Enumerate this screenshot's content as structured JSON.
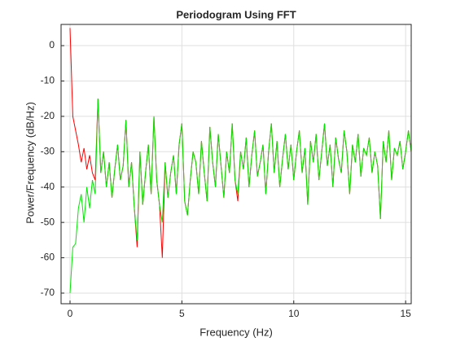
{
  "chart_data": {
    "type": "line",
    "title": "Periodogram Using FFT",
    "xlabel": "Frequency (Hz)",
    "ylabel": "Power/Frequency (dB/Hz)",
    "x": [
      0,
      0.125,
      0.25,
      0.375,
      0.5,
      0.625,
      0.75,
      0.875,
      1,
      1.125,
      1.25,
      1.375,
      1.5,
      1.625,
      1.75,
      1.875,
      2,
      2.125,
      2.25,
      2.375,
      2.5,
      2.625,
      2.75,
      2.875,
      3,
      3.125,
      3.25,
      3.375,
      3.5,
      3.625,
      3.75,
      3.875,
      4,
      4.125,
      4.25,
      4.375,
      4.5,
      4.625,
      4.75,
      4.875,
      5,
      5.125,
      5.25,
      5.375,
      5.5,
      5.625,
      5.75,
      5.875,
      6,
      6.125,
      6.25,
      6.375,
      6.5,
      6.625,
      6.75,
      6.875,
      7,
      7.125,
      7.25,
      7.375,
      7.5,
      7.625,
      7.75,
      7.875,
      8,
      8.125,
      8.25,
      8.375,
      8.5,
      8.625,
      8.75,
      8.875,
      9,
      9.125,
      9.25,
      9.375,
      9.5,
      9.625,
      9.75,
      9.875,
      10,
      10.125,
      10.25,
      10.375,
      10.5,
      10.625,
      10.75,
      10.875,
      11,
      11.125,
      11.25,
      11.375,
      11.5,
      11.625,
      11.75,
      11.875,
      12,
      12.125,
      12.25,
      12.375,
      12.5,
      12.625,
      12.75,
      12.875,
      13,
      13.125,
      13.25,
      13.375,
      13.5,
      13.625,
      13.75,
      13.875,
      14,
      14.125,
      14.25,
      14.375,
      14.5,
      14.625,
      14.75,
      14.875,
      15,
      15.125,
      15.25
    ],
    "series": [
      {
        "color": "#ff0000",
        "values": [
          5,
          -20,
          -24,
          -28,
          -33,
          -29,
          -35,
          -31,
          -36,
          -38,
          -15,
          -36,
          -30,
          -40,
          -33,
          -43,
          -35,
          -28,
          -38,
          -34,
          -21,
          -40,
          -33,
          -46,
          -57,
          -30,
          -45,
          -36,
          -28,
          -42,
          -20,
          -38,
          -45,
          -60,
          -33,
          -43,
          -36,
          -31,
          -42,
          -28,
          -22,
          -44,
          -48,
          -38,
          -30,
          -33,
          -42,
          -27,
          -36,
          -44,
          -23,
          -33,
          -40,
          -25,
          -34,
          -43,
          -30,
          -36,
          -22,
          -38,
          -44,
          -30,
          -35,
          -26,
          -40,
          -31,
          -24,
          -37,
          -33,
          -28,
          -42,
          -30,
          -22,
          -36,
          -27,
          -40,
          -32,
          -25,
          -35,
          -28,
          -38,
          -30,
          -24,
          -36,
          -29,
          -45,
          -27,
          -33,
          -25,
          -38,
          -30,
          -22,
          -34,
          -28,
          -40,
          -26,
          -32,
          -36,
          -24,
          -30,
          -42,
          -28,
          -33,
          -25,
          -37,
          -29,
          -31,
          -26,
          -36,
          -30,
          -34,
          -49,
          -27,
          -33,
          -24,
          -38,
          -29,
          -31,
          -27,
          -35,
          -30,
          -24,
          -30
        ]
      },
      {
        "color": "#00e600",
        "values": [
          -70,
          -57,
          -56,
          -46,
          -42,
          -50,
          -40,
          -46,
          -38,
          -42,
          -15,
          -36,
          -30,
          -40,
          -33,
          -43,
          -35,
          -28,
          -38,
          -34,
          -21,
          -40,
          -33,
          -46,
          -55,
          -30,
          -45,
          -36,
          -28,
          -42,
          -20,
          -38,
          -45,
          -50,
          -33,
          -43,
          -36,
          -31,
          -42,
          -28,
          -22,
          -44,
          -48,
          -38,
          -30,
          -33,
          -42,
          -27,
          -36,
          -44,
          -23,
          -33,
          -40,
          -25,
          -34,
          -43,
          -30,
          -36,
          -22,
          -38,
          -42,
          -30,
          -35,
          -26,
          -40,
          -31,
          -24,
          -37,
          -33,
          -28,
          -42,
          -30,
          -22,
          -36,
          -27,
          -40,
          -32,
          -25,
          -35,
          -28,
          -38,
          -30,
          -24,
          -36,
          -29,
          -45,
          -27,
          -33,
          -25,
          -38,
          -30,
          -22,
          -34,
          -28,
          -40,
          -26,
          -32,
          -36,
          -24,
          -30,
          -42,
          -28,
          -33,
          -25,
          -37,
          -29,
          -31,
          -26,
          -36,
          -30,
          -34,
          -49,
          -27,
          -33,
          -24,
          -38,
          -29,
          -31,
          -27,
          -35,
          -30,
          -24,
          -30
        ]
      }
    ],
    "xlim": [
      -0.4,
      15.25
    ],
    "ylim": [
      -73,
      6
    ],
    "xticks": [
      0,
      5,
      10,
      15
    ],
    "yticks": [
      0,
      -10,
      -20,
      -30,
      -40,
      -50,
      -60,
      -70
    ],
    "grid": true
  }
}
